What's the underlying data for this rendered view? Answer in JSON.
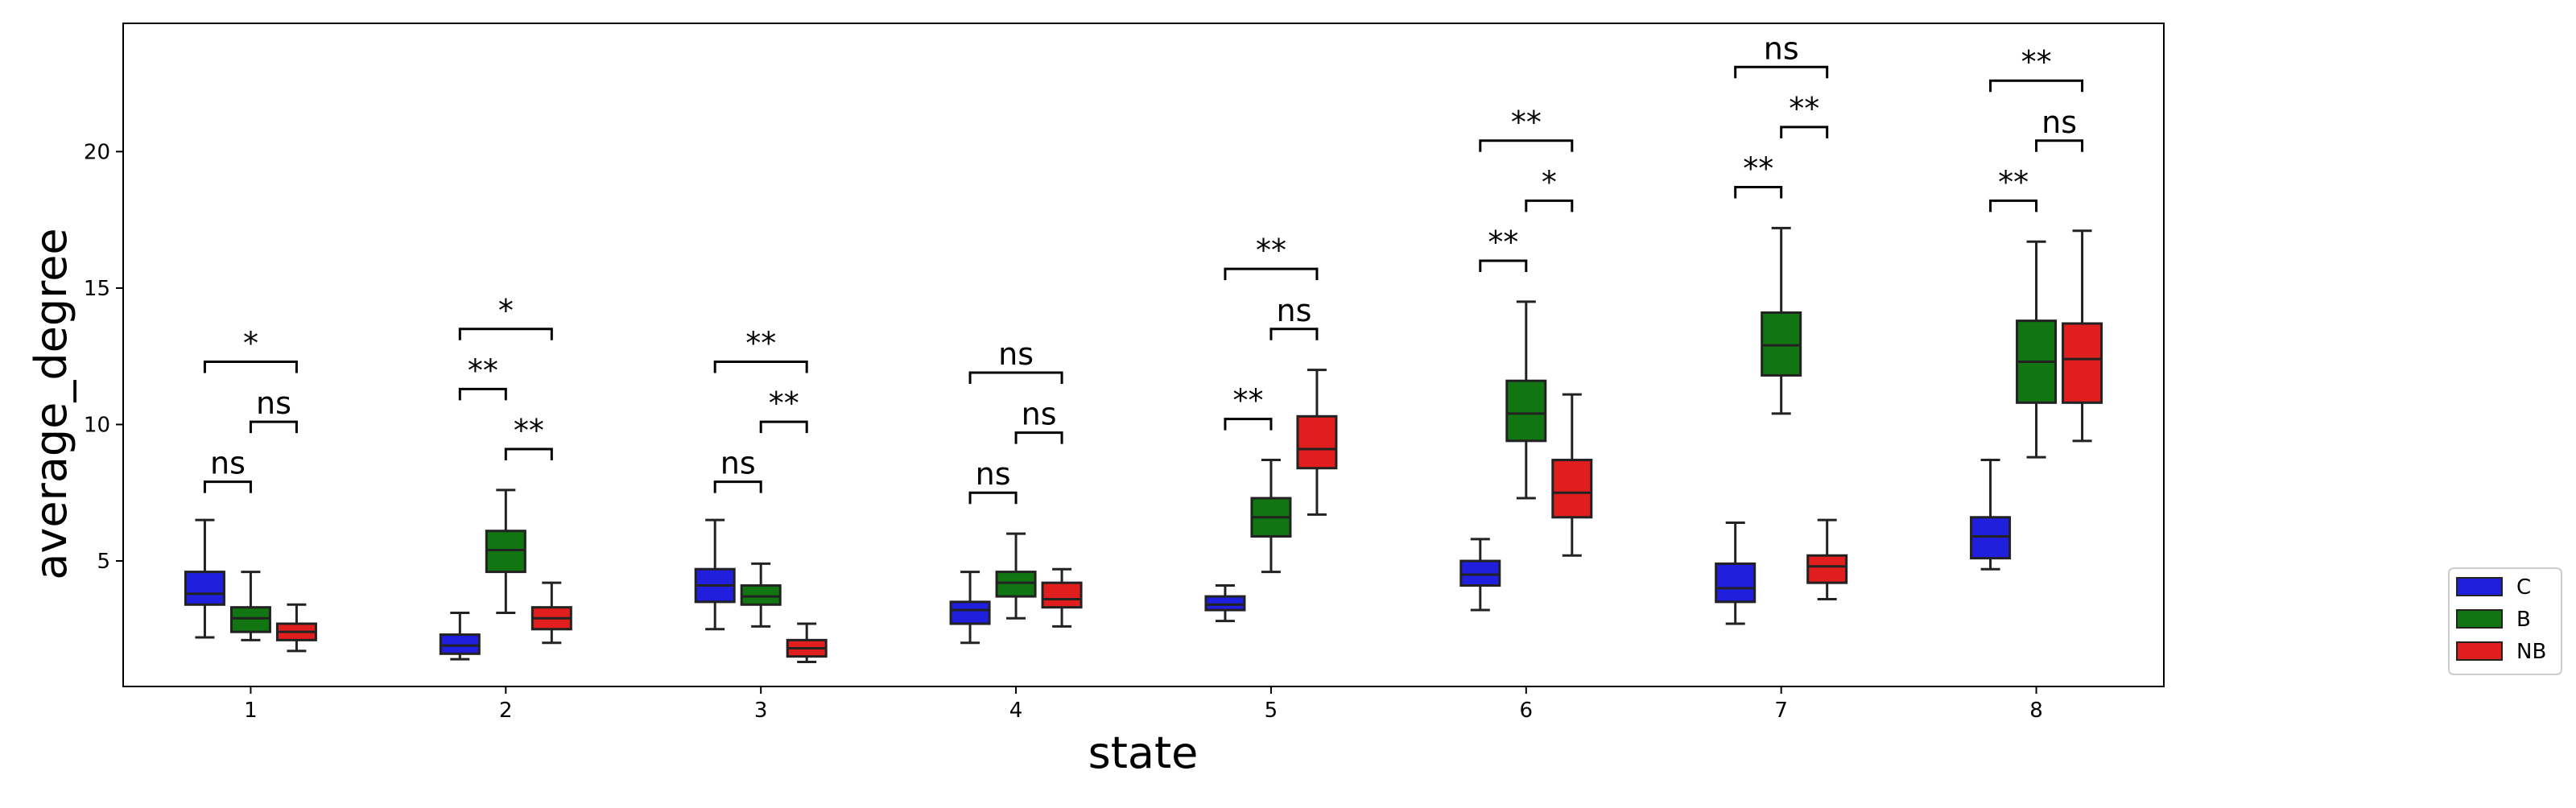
{
  "chart_data": {
    "type": "box",
    "xlabel": "state",
    "ylabel": "average_degree",
    "categories": [
      "1",
      "2",
      "3",
      "4",
      "5",
      "6",
      "7",
      "8"
    ],
    "ylim": [
      0.4,
      24.7
    ],
    "yticks": [
      5,
      10,
      15,
      20
    ],
    "grid": false,
    "legend_position": "right, outside plot",
    "series": [
      {
        "name": "C",
        "color": "#1f1fdd",
        "boxes": [
          {
            "whislo": 2.2,
            "q1": 3.4,
            "med": 3.8,
            "q3": 4.6,
            "whishi": 6.5
          },
          {
            "whislo": 1.4,
            "q1": 1.6,
            "med": 1.9,
            "q3": 2.3,
            "whishi": 3.1
          },
          {
            "whislo": 2.5,
            "q1": 3.5,
            "med": 4.1,
            "q3": 4.7,
            "whishi": 6.5
          },
          {
            "whislo": 2.0,
            "q1": 2.7,
            "med": 3.2,
            "q3": 3.5,
            "whishi": 4.6
          },
          {
            "whislo": 2.8,
            "q1": 3.2,
            "med": 3.4,
            "q3": 3.7,
            "whishi": 4.1
          },
          {
            "whislo": 3.2,
            "q1": 4.1,
            "med": 4.5,
            "q3": 5.0,
            "whishi": 5.8
          },
          {
            "whislo": 2.7,
            "q1": 3.5,
            "med": 4.0,
            "q3": 4.9,
            "whishi": 6.4
          },
          {
            "whislo": 4.7,
            "q1": 5.1,
            "med": 5.9,
            "q3": 6.6,
            "whishi": 8.7
          }
        ]
      },
      {
        "name": "B",
        "color": "#117511",
        "boxes": [
          {
            "whislo": 2.1,
            "q1": 2.4,
            "med": 2.9,
            "q3": 3.3,
            "whishi": 4.6
          },
          {
            "whislo": 3.1,
            "q1": 4.6,
            "med": 5.4,
            "q3": 6.1,
            "whishi": 7.6
          },
          {
            "whislo": 2.6,
            "q1": 3.4,
            "med": 3.7,
            "q3": 4.1,
            "whishi": 4.9
          },
          {
            "whislo": 2.9,
            "q1": 3.7,
            "med": 4.2,
            "q3": 4.6,
            "whishi": 6.0
          },
          {
            "whislo": 4.6,
            "q1": 5.9,
            "med": 6.6,
            "q3": 7.3,
            "whishi": 8.7
          },
          {
            "whislo": 7.3,
            "q1": 9.4,
            "med": 10.4,
            "q3": 11.6,
            "whishi": 14.5
          },
          {
            "whislo": 10.4,
            "q1": 11.8,
            "med": 12.9,
            "q3": 14.1,
            "whishi": 17.2
          },
          {
            "whislo": 8.8,
            "q1": 10.8,
            "med": 12.3,
            "q3": 13.8,
            "whishi": 16.7
          }
        ]
      },
      {
        "name": "NB",
        "color": "#e01e1e",
        "boxes": [
          {
            "whislo": 1.7,
            "q1": 2.1,
            "med": 2.4,
            "q3": 2.7,
            "whishi": 3.4
          },
          {
            "whislo": 2.0,
            "q1": 2.5,
            "med": 2.9,
            "q3": 3.3,
            "whishi": 4.2
          },
          {
            "whislo": 1.3,
            "q1": 1.5,
            "med": 1.8,
            "q3": 2.1,
            "whishi": 2.7
          },
          {
            "whislo": 2.6,
            "q1": 3.3,
            "med": 3.6,
            "q3": 4.2,
            "whishi": 4.7
          },
          {
            "whislo": 6.7,
            "q1": 8.4,
            "med": 9.1,
            "q3": 10.3,
            "whishi": 12.0
          },
          {
            "whislo": 5.2,
            "q1": 6.6,
            "med": 7.5,
            "q3": 8.7,
            "whishi": 11.1
          },
          {
            "whislo": 3.6,
            "q1": 4.2,
            "med": 4.8,
            "q3": 5.2,
            "whishi": 6.5
          },
          {
            "whislo": 9.4,
            "q1": 10.8,
            "med": 12.4,
            "q3": 13.7,
            "whishi": 17.1
          }
        ]
      }
    ],
    "annotations": [
      {
        "state": "1",
        "from": "C",
        "to": "B",
        "y": 7.9,
        "label": "ns"
      },
      {
        "state": "1",
        "from": "B",
        "to": "NB",
        "y": 10.1,
        "label": "ns"
      },
      {
        "state": "1",
        "from": "C",
        "to": "NB",
        "y": 12.3,
        "label": "*"
      },
      {
        "state": "2",
        "from": "C",
        "to": "B",
        "y": 11.3,
        "label": "**"
      },
      {
        "state": "2",
        "from": "B",
        "to": "NB",
        "y": 9.1,
        "label": "**"
      },
      {
        "state": "2",
        "from": "C",
        "to": "NB",
        "y": 13.5,
        "label": "*"
      },
      {
        "state": "3",
        "from": "C",
        "to": "B",
        "y": 7.9,
        "label": "ns"
      },
      {
        "state": "3",
        "from": "B",
        "to": "NB",
        "y": 10.1,
        "label": "**"
      },
      {
        "state": "3",
        "from": "C",
        "to": "NB",
        "y": 12.3,
        "label": "**"
      },
      {
        "state": "4",
        "from": "C",
        "to": "B",
        "y": 7.5,
        "label": "ns"
      },
      {
        "state": "4",
        "from": "B",
        "to": "NB",
        "y": 9.7,
        "label": "ns"
      },
      {
        "state": "4",
        "from": "C",
        "to": "NB",
        "y": 11.9,
        "label": "ns"
      },
      {
        "state": "5",
        "from": "C",
        "to": "B",
        "y": 10.2,
        "label": "**"
      },
      {
        "state": "5",
        "from": "B",
        "to": "NB",
        "y": 13.5,
        "label": "ns"
      },
      {
        "state": "5",
        "from": "C",
        "to": "NB",
        "y": 15.7,
        "label": "**"
      },
      {
        "state": "6",
        "from": "C",
        "to": "B",
        "y": 16.0,
        "label": "**"
      },
      {
        "state": "6",
        "from": "B",
        "to": "NB",
        "y": 18.2,
        "label": "*"
      },
      {
        "state": "6",
        "from": "C",
        "to": "NB",
        "y": 20.4,
        "label": "**"
      },
      {
        "state": "7",
        "from": "C",
        "to": "B",
        "y": 18.7,
        "label": "**"
      },
      {
        "state": "7",
        "from": "B",
        "to": "NB",
        "y": 20.9,
        "label": "**"
      },
      {
        "state": "7",
        "from": "C",
        "to": "NB",
        "y": 23.1,
        "label": "ns"
      },
      {
        "state": "8",
        "from": "C",
        "to": "B",
        "y": 18.2,
        "label": "**"
      },
      {
        "state": "8",
        "from": "B",
        "to": "NB",
        "y": 20.4,
        "label": "ns"
      },
      {
        "state": "8",
        "from": "C",
        "to": "NB",
        "y": 22.6,
        "label": "**"
      }
    ]
  }
}
